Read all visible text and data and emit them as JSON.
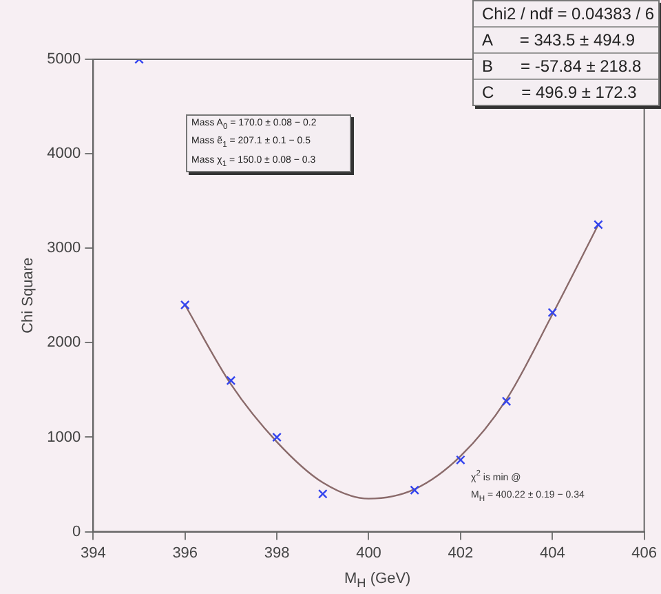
{
  "chart_data": {
    "type": "scatter",
    "xlabel": "M$_{H}$ (GeV)",
    "ylabel": "Chi Square",
    "xlim": [
      394,
      406
    ],
    "xticks": [
      394,
      396,
      398,
      400,
      402,
      404,
      406
    ],
    "ylim": [
      0,
      5000
    ],
    "yticks": [
      0,
      1000,
      2000,
      3000,
      4000,
      5000
    ],
    "grid": false,
    "legend": false,
    "marker": "cross",
    "series": [
      {
        "type": "scatter",
        "color": "#3344ee",
        "x": [
          395,
          396,
          397,
          398,
          399,
          401,
          402,
          403,
          404,
          405
        ],
        "values": [
          5000,
          2400,
          1600,
          1000,
          400,
          440,
          760,
          1380,
          2320,
          3250
        ]
      },
      {
        "type": "line",
        "color": "#8a6a6a",
        "marker": "none",
        "line_style": "solid",
        "x": [
          396,
          397,
          398,
          399,
          400,
          401,
          402,
          403,
          404,
          405
        ],
        "values": [
          2400,
          1560,
          950,
          520,
          350,
          450,
          800,
          1400,
          2300,
          3250
        ]
      }
    ],
    "annotations": [
      "Chi2 / ndf = 0.04383 / 6",
      "A      = 343.5 ± 494.9",
      "B      = -57.84 ± 218.8",
      "C      = 496.9 ± 172.3",
      "Mass A$_{0}$ = 170.0 ± 0.08 − 0.2",
      "Mass ẽ$_{1}$ = 207.1 ± 0.1 − 0.5",
      "Mass χ$_{1}$ = 150.0 ± 0.08 − 0.3",
      "χ$^{2}$ is min @",
      "M$_{H}$ = 400.22 ± 0.19 − 0.34"
    ]
  }
}
